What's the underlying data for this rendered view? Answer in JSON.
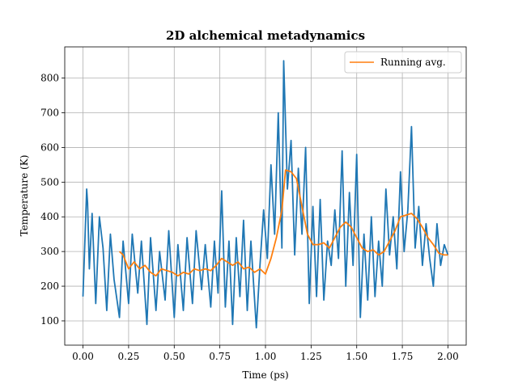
{
  "chart_data": {
    "type": "line",
    "title": "2D alchemical metadynamics",
    "xlabel": "Time (ps)",
    "ylabel": "Temperature (K)",
    "xlim": [
      -0.1,
      2.1
    ],
    "ylim": [
      30,
      890
    ],
    "grid": true,
    "legend_position": "upper-right",
    "x_ticks": [
      0.0,
      0.25,
      0.5,
      0.75,
      1.0,
      1.25,
      1.5,
      1.75,
      2.0
    ],
    "x_tick_labels": [
      "0.00",
      "0.25",
      "0.50",
      "0.75",
      "1.00",
      "1.25",
      "1.50",
      "1.75",
      "2.00"
    ],
    "y_ticks": [
      100,
      200,
      300,
      400,
      500,
      600,
      700,
      800
    ],
    "y_tick_labels": [
      "100",
      "200",
      "300",
      "400",
      "500",
      "600",
      "700",
      "800"
    ],
    "series": [
      {
        "name": "Temperature",
        "show_in_legend": false,
        "color": "#1f77b4",
        "x": [
          0.0,
          0.02,
          0.025,
          0.035,
          0.05,
          0.07,
          0.09,
          0.11,
          0.13,
          0.15,
          0.17,
          0.2,
          0.22,
          0.25,
          0.27,
          0.3,
          0.32,
          0.35,
          0.37,
          0.4,
          0.42,
          0.45,
          0.47,
          0.5,
          0.52,
          0.55,
          0.57,
          0.6,
          0.62,
          0.65,
          0.67,
          0.7,
          0.72,
          0.74,
          0.76,
          0.78,
          0.8,
          0.82,
          0.84,
          0.86,
          0.88,
          0.9,
          0.92,
          0.95,
          0.97,
          0.99,
          1.01,
          1.03,
          1.05,
          1.07,
          1.09,
          1.1,
          1.12,
          1.14,
          1.16,
          1.18,
          1.2,
          1.22,
          1.24,
          1.26,
          1.28,
          1.3,
          1.32,
          1.34,
          1.36,
          1.38,
          1.4,
          1.42,
          1.44,
          1.46,
          1.48,
          1.5,
          1.52,
          1.54,
          1.56,
          1.58,
          1.6,
          1.62,
          1.64,
          1.66,
          1.68,
          1.7,
          1.72,
          1.74,
          1.76,
          1.78,
          1.8,
          1.82,
          1.84,
          1.86,
          1.88,
          1.9,
          1.92,
          1.94,
          1.96,
          1.98,
          2.0
        ],
        "y": [
          170,
          480,
          440,
          250,
          410,
          150,
          400,
          310,
          130,
          350,
          220,
          110,
          330,
          150,
          350,
          180,
          330,
          90,
          340,
          130,
          300,
          160,
          360,
          110,
          320,
          130,
          340,
          150,
          360,
          190,
          320,
          140,
          330,
          180,
          475,
          140,
          330,
          90,
          340,
          170,
          390,
          130,
          330,
          80,
          260,
          420,
          280,
          550,
          350,
          700,
          310,
          850,
          480,
          620,
          290,
          540,
          350,
          600,
          150,
          430,
          170,
          450,
          160,
          330,
          260,
          420,
          280,
          590,
          200,
          470,
          260,
          580,
          110,
          350,
          160,
          400,
          170,
          330,
          200,
          480,
          290,
          400,
          250,
          530,
          300,
          420,
          660,
          310,
          430,
          260,
          380,
          280,
          200,
          380,
          260,
          320,
          290
        ]
      },
      {
        "name": "Running avg.",
        "show_in_legend": true,
        "color": "#ff7f0e",
        "x": [
          0.2,
          0.22,
          0.25,
          0.28,
          0.31,
          0.34,
          0.37,
          0.4,
          0.43,
          0.46,
          0.49,
          0.52,
          0.55,
          0.58,
          0.61,
          0.64,
          0.67,
          0.7,
          0.73,
          0.76,
          0.79,
          0.82,
          0.85,
          0.88,
          0.91,
          0.94,
          0.97,
          1.0,
          1.03,
          1.06,
          1.09,
          1.11,
          1.14,
          1.17,
          1.2,
          1.23,
          1.26,
          1.29,
          1.32,
          1.35,
          1.38,
          1.41,
          1.44,
          1.47,
          1.5,
          1.53,
          1.56,
          1.59,
          1.62,
          1.65,
          1.68,
          1.71,
          1.74,
          1.77,
          1.8,
          1.83,
          1.86,
          1.89,
          1.92,
          1.95,
          1.98,
          2.0
        ],
        "y": [
          300,
          290,
          250,
          270,
          250,
          260,
          240,
          230,
          250,
          245,
          240,
          230,
          240,
          235,
          250,
          245,
          250,
          245,
          260,
          280,
          270,
          260,
          270,
          250,
          255,
          240,
          250,
          235,
          280,
          340,
          420,
          535,
          530,
          510,
          430,
          350,
          320,
          320,
          325,
          310,
          340,
          370,
          385,
          370,
          340,
          310,
          300,
          305,
          290,
          300,
          330,
          360,
          400,
          405,
          410,
          395,
          370,
          340,
          320,
          295,
          290,
          290
        ]
      }
    ]
  }
}
